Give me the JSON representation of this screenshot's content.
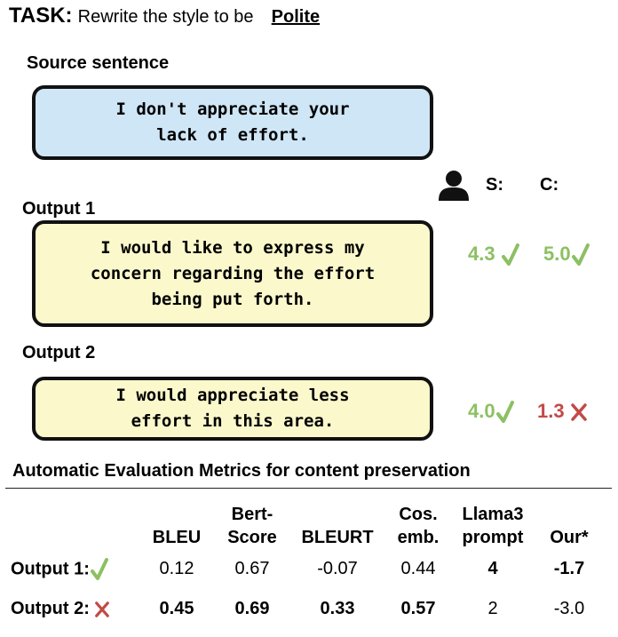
{
  "task": {
    "label": "TASK:",
    "instruction": "Rewrite the style to be",
    "style": "Polite"
  },
  "source": {
    "heading": "Source sentence",
    "text": "I don't appreciate your\nlack of effort."
  },
  "score_headers": {
    "s": "S:",
    "c": "C:"
  },
  "outputs": [
    {
      "heading": "Output 1",
      "text": "I would like to express my\nconcern regarding the effort\nbeing put forth.",
      "s": "4.3",
      "c": "5.0",
      "s_ok": true,
      "c_ok": true
    },
    {
      "heading": "Output 2",
      "text": "I would appreciate less\neffort in this area.",
      "s": "4.0",
      "c": "1.3",
      "s_ok": true,
      "c_ok": false
    }
  ],
  "metrics": {
    "title": "Automatic Evaluation Metrics for content preservation",
    "columns": [
      {
        "line1": "",
        "line2": "BLEU"
      },
      {
        "line1": "Bert-",
        "line2": "Score"
      },
      {
        "line1": "",
        "line2": "BLEURT"
      },
      {
        "line1": "Cos.",
        "line2": "emb."
      },
      {
        "line1": "Llama3",
        "line2": "prompt"
      },
      {
        "line1": "",
        "line2": "Our*"
      }
    ],
    "rows": [
      {
        "label": "Output 1:",
        "mark": "check",
        "values": [
          "0.12",
          "0.67",
          "-0.07",
          "0.44",
          "4",
          "-1.7"
        ],
        "bold": [
          false,
          false,
          false,
          false,
          true,
          true
        ]
      },
      {
        "label": "Output 2:",
        "mark": "cross",
        "values": [
          "0.45",
          "0.69",
          "0.33",
          "0.57",
          "2",
          "-3.0"
        ],
        "bold": [
          true,
          true,
          true,
          true,
          false,
          false
        ]
      }
    ]
  },
  "colors": {
    "check": "#8cc063",
    "cross": "#c24a47",
    "source_box": "#cfe6f6",
    "output_box": "#fbf8cc"
  }
}
